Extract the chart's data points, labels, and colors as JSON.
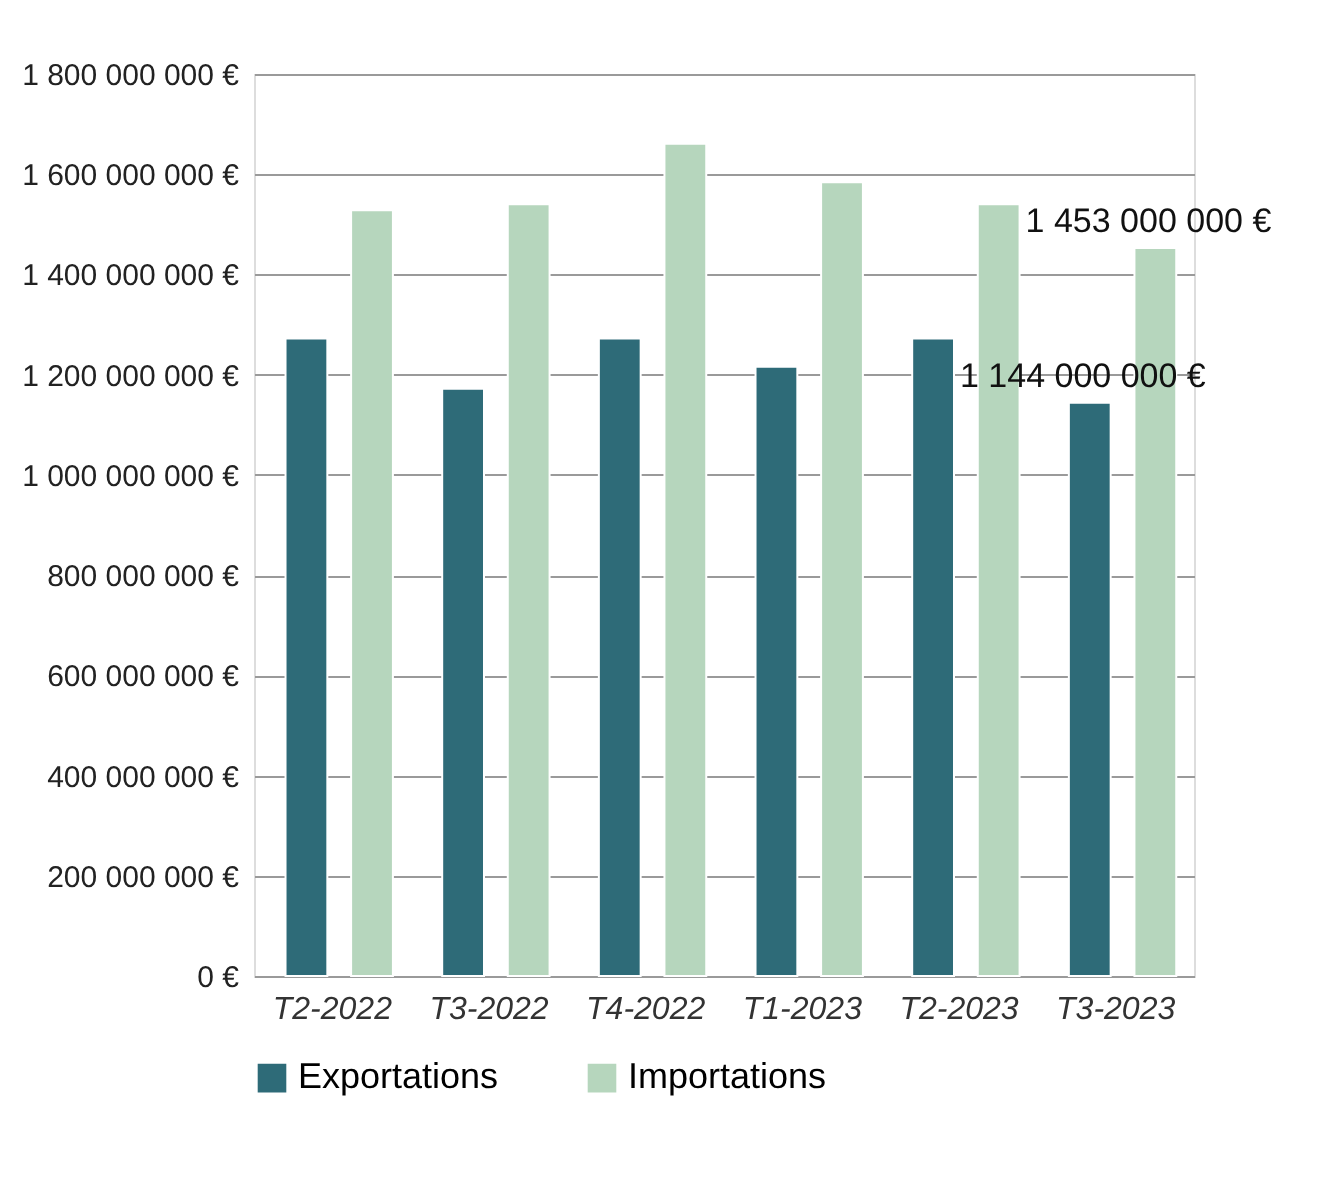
{
  "chart_data": {
    "type": "bar",
    "categories": [
      "T2-2022",
      "T3-2022",
      "T4-2022",
      "T1-2023",
      "T2-2023",
      "T3-2023"
    ],
    "series": [
      {
        "name": "Exportations",
        "color": "#2e6b78",
        "values": [
          1272000000,
          1172000000,
          1272000000,
          1216000000,
          1272000000,
          1144000000
        ],
        "value_labels": [
          null,
          null,
          null,
          null,
          null,
          "1 144 000 000 €"
        ]
      },
      {
        "name": "Importations",
        "color": "#b6d6bd",
        "values": [
          1528000000,
          1540000000,
          1661000000,
          1584000000,
          1540000000,
          1453000000
        ],
        "value_labels": [
          null,
          null,
          null,
          null,
          null,
          "1 453 000 000 €"
        ]
      }
    ],
    "ylim": [
      0,
      1800000000
    ],
    "yticks": [
      {
        "value": 0,
        "label": "0 €"
      },
      {
        "value": 200000000,
        "label": "200 000 000 €"
      },
      {
        "value": 400000000,
        "label": "400 000 000 €"
      },
      {
        "value": 600000000,
        "label": "600 000 000 €"
      },
      {
        "value": 800000000,
        "label": "800 000 000 €"
      },
      {
        "value": 1000000000,
        "label": "1 000 000 000 €"
      },
      {
        "value": 1200000000,
        "label": "1 200 000 000 €"
      },
      {
        "value": 1400000000,
        "label": "1 400 000 000 €"
      },
      {
        "value": 1600000000,
        "label": "1 600 000 000 €"
      },
      {
        "value": 1800000000,
        "label": "1 800 000 000 €"
      }
    ],
    "grid": "y",
    "legend": "bottom"
  }
}
